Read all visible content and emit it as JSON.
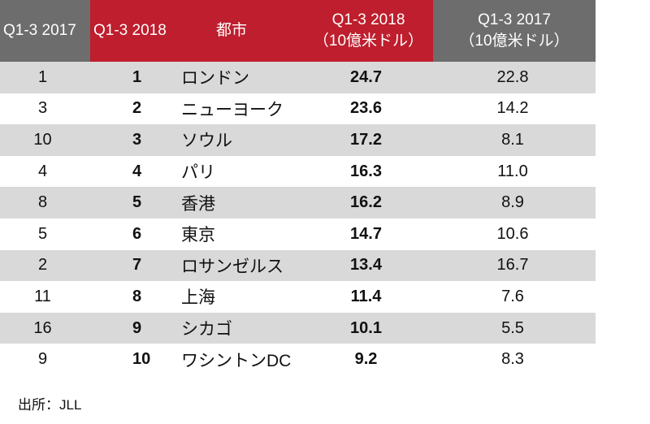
{
  "table": {
    "headers": {
      "rank_2017": "Q1-3 2017",
      "rank_2018": "Q1-3 2018",
      "city": "都市",
      "value_2018_line1": "Q1-3 2018",
      "value_2018_line2": "（10億米ドル）",
      "value_2017_line1": "Q1-3 2017",
      "value_2017_line2": "（10億米ドル）"
    },
    "rows": [
      {
        "rank_2017": "1",
        "rank_2018": "1",
        "city": "ロンドン",
        "value_2018": "24.7",
        "value_2017": "22.8"
      },
      {
        "rank_2017": "3",
        "rank_2018": "2",
        "city": "ニューヨーク",
        "value_2018": "23.6",
        "value_2017": "14.2"
      },
      {
        "rank_2017": "10",
        "rank_2018": "3",
        "city": "ソウル",
        "value_2018": "17.2",
        "value_2017": "8.1"
      },
      {
        "rank_2017": "4",
        "rank_2018": "4",
        "city": "パリ",
        "value_2018": "16.3",
        "value_2017": "11.0"
      },
      {
        "rank_2017": "8",
        "rank_2018": "5",
        "city": "香港",
        "value_2018": "16.2",
        "value_2017": "8.9"
      },
      {
        "rank_2017": "5",
        "rank_2018": "6",
        "city": "東京",
        "value_2018": "14.7",
        "value_2017": "10.6"
      },
      {
        "rank_2017": "2",
        "rank_2018": "7",
        "city": "ロサンゼルス",
        "value_2018": "13.4",
        "value_2017": "16.7"
      },
      {
        "rank_2017": "11",
        "rank_2018": "8",
        "city": "上海",
        "value_2018": "11.4",
        "value_2017": "7.6"
      },
      {
        "rank_2017": "16",
        "rank_2018": "9",
        "city": "シカゴ",
        "value_2018": "10.1",
        "value_2017": "5.5"
      },
      {
        "rank_2017": "9",
        "rank_2018": "10",
        "city": "ワシントンDC",
        "value_2018": "9.2",
        "value_2017": "8.3"
      }
    ]
  },
  "source": "出所：JLL",
  "colors": {
    "header_gray": "#6d6d6d",
    "header_red": "#be1e2d",
    "row_shade": "#d9d9d9"
  }
}
